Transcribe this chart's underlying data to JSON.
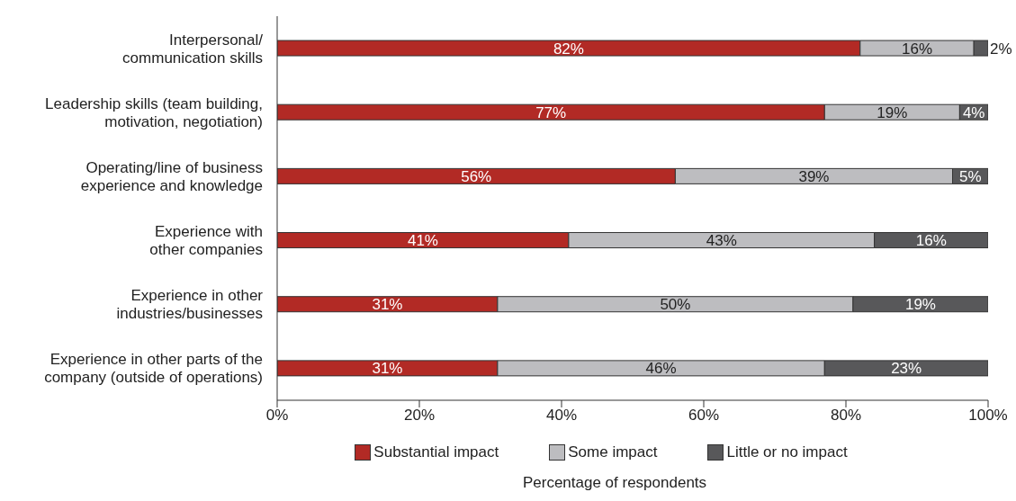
{
  "chart_data": {
    "type": "bar",
    "orientation": "horizontal",
    "stacked": true,
    "xlabel": "Percentage of respondents",
    "categories": [
      "Interpersonal/\ncommunication skills",
      "Leadership skills (team building,\nmotivation, negotiation)",
      "Operating/line of business\nexperience and knowledge",
      "Experience with\nother companies",
      "Experience in other\nindustries/businesses",
      "Experience in other parts of the\ncompany (outside of operations)"
    ],
    "series": [
      {
        "name": "Substantial impact",
        "color": "#b22a25",
        "values": [
          82,
          77,
          56,
          41,
          31,
          31
        ],
        "value_labels": [
          "82%",
          "77%",
          "56%",
          "41%",
          "31%",
          "31%"
        ]
      },
      {
        "name": "Some impact",
        "color": "#bdbdc0",
        "values": [
          16,
          19,
          39,
          43,
          50,
          46
        ],
        "value_labels": [
          "16%",
          "19%",
          "39%",
          "43%",
          "50%",
          "46%"
        ]
      },
      {
        "name": "Little or no impact",
        "color": "#58585a",
        "values": [
          2,
          4,
          5,
          16,
          19,
          23
        ],
        "value_labels": [
          "2%",
          "4%",
          "5%",
          "16%",
          "19%",
          "23%"
        ]
      }
    ],
    "xlim": [
      0,
      100
    ],
    "xticks": [
      {
        "value": 0,
        "label": "0%"
      },
      {
        "value": 20,
        "label": "20%"
      },
      {
        "value": 40,
        "label": "40%"
      },
      {
        "value": 60,
        "label": "60%"
      },
      {
        "value": 80,
        "label": "80%"
      },
      {
        "value": 100,
        "label": "100%"
      }
    ],
    "legend": "bottom"
  }
}
